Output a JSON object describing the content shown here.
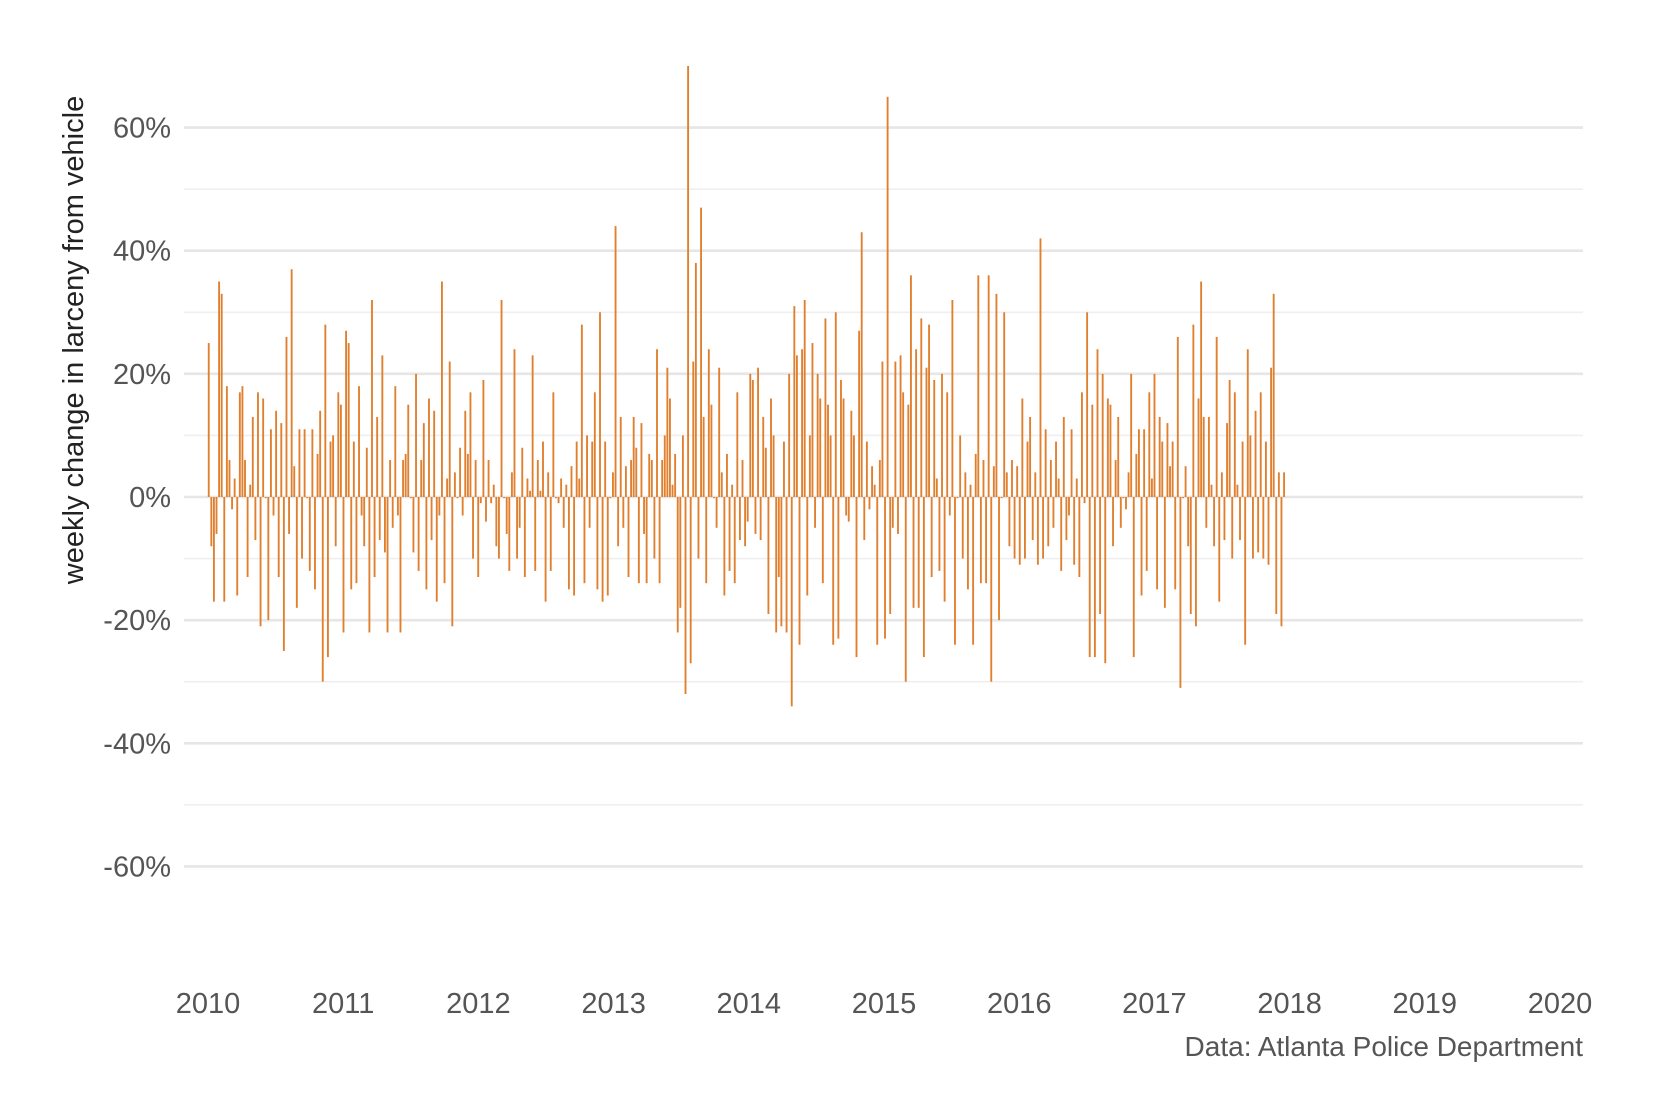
{
  "chart_data": {
    "type": "bar",
    "ylabel": "weekly change in larceny from vehicle",
    "caption": "Data: Atlanta Police Department",
    "ylim": [
      -0.7,
      0.7
    ],
    "xlim": [
      2010,
      2020
    ],
    "y_ticks": [
      -0.6,
      -0.4,
      -0.2,
      0,
      0.2,
      0.4,
      0.6
    ],
    "y_tick_labels": [
      "-60%",
      "-40%",
      "-20%",
      "0%",
      "20%",
      "40%",
      "60%"
    ],
    "x_ticks": [
      2010,
      2011,
      2012,
      2013,
      2014,
      2015,
      2016,
      2017,
      2018,
      2019,
      2020
    ],
    "x_tick_labels": [
      "2010",
      "2011",
      "2012",
      "2013",
      "2014",
      "2015",
      "2016",
      "2017",
      "2018",
      "2019",
      "2020"
    ],
    "grid": true,
    "bar_color": "#e07f2e",
    "x_start": "2010-01-03",
    "x_step_weeks": 1,
    "values": [
      0.25,
      -0.08,
      -0.17,
      -0.06,
      0.35,
      0.33,
      -0.17,
      0.18,
      0.06,
      -0.02,
      0.03,
      -0.16,
      0.17,
      0.18,
      0.06,
      -0.13,
      0.02,
      0.13,
      -0.07,
      0.17,
      -0.21,
      0.16,
      0.0,
      -0.2,
      0.11,
      -0.03,
      0.14,
      -0.13,
      0.12,
      -0.25,
      0.26,
      -0.06,
      0.37,
      0.05,
      -0.18,
      0.11,
      -0.1,
      0.11,
      0.0,
      -0.12,
      0.11,
      -0.15,
      0.07,
      0.14,
      -0.3,
      0.28,
      -0.26,
      0.09,
      0.1,
      -0.08,
      0.17,
      0.15,
      -0.22,
      0.27,
      0.25,
      -0.15,
      0.09,
      -0.14,
      0.18,
      -0.03,
      -0.08,
      0.08,
      -0.22,
      0.32,
      -0.13,
      0.13,
      -0.07,
      0.23,
      -0.09,
      -0.22,
      0.06,
      -0.05,
      0.18,
      -0.03,
      -0.22,
      0.06,
      0.07,
      0.15,
      0.0,
      -0.09,
      0.2,
      -0.12,
      0.06,
      0.12,
      -0.15,
      0.16,
      -0.07,
      0.14,
      -0.17,
      -0.03,
      0.35,
      -0.14,
      0.03,
      0.22,
      -0.21,
      0.04,
      0.0,
      0.08,
      -0.03,
      0.14,
      0.07,
      0.17,
      -0.1,
      0.06,
      -0.13,
      -0.01,
      0.19,
      -0.04,
      0.06,
      -0.01,
      0.02,
      -0.08,
      -0.1,
      0.32,
      0.0,
      -0.06,
      -0.12,
      0.04,
      0.24,
      -0.1,
      -0.05,
      0.08,
      -0.13,
      0.03,
      0.01,
      0.23,
      -0.12,
      0.06,
      0.01,
      0.09,
      -0.17,
      0.04,
      -0.12,
      0.17,
      0.0,
      -0.01,
      0.03,
      -0.05,
      0.02,
      -0.15,
      0.05,
      -0.16,
      0.09,
      0.03,
      0.28,
      -0.14,
      0.1,
      -0.05,
      0.09,
      0.17,
      -0.15,
      0.3,
      -0.17,
      0.09,
      -0.16,
      0.0,
      0.04,
      0.44,
      -0.08,
      0.13,
      -0.05,
      0.05,
      -0.13,
      0.06,
      0.13,
      0.08,
      -0.14,
      0.12,
      -0.06,
      -0.14,
      0.07,
      0.06,
      -0.1,
      0.24,
      -0.14,
      0.06,
      0.1,
      0.21,
      0.16,
      0.02,
      0.07,
      -0.22,
      -0.18,
      0.1,
      -0.32,
      0.7,
      -0.27,
      0.22,
      0.38,
      -0.1,
      0.47,
      0.13,
      -0.14,
      0.24,
      0.15,
      0.0,
      -0.05,
      0.21,
      0.04,
      -0.16,
      0.07,
      -0.12,
      0.02,
      -0.14,
      0.17,
      -0.07,
      0.06,
      -0.08,
      -0.04,
      0.2,
      0.19,
      -0.06,
      0.21,
      -0.07,
      0.13,
      0.08,
      -0.19,
      0.16,
      0.1,
      -0.22,
      -0.13,
      -0.21,
      0.09,
      -0.22,
      0.2,
      -0.34,
      0.31,
      0.23,
      -0.24,
      0.24,
      0.32,
      -0.16,
      0.1,
      0.25,
      -0.05,
      0.2,
      0.16,
      -0.14,
      0.29,
      0.15,
      0.1,
      -0.24,
      0.3,
      -0.23,
      0.19,
      0.16,
      -0.03,
      -0.04,
      0.14,
      0.1,
      -0.26,
      0.27,
      0.43,
      -0.07,
      0.09,
      -0.02,
      0.05,
      0.02,
      -0.24,
      0.06,
      0.22,
      -0.23,
      0.65,
      -0.19,
      -0.05,
      0.22,
      -0.06,
      0.23,
      0.17,
      -0.3,
      0.15,
      0.36,
      -0.18,
      0.24,
      -0.18,
      0.29,
      -0.26,
      0.21,
      0.28,
      -0.13,
      0.19,
      0.03,
      -0.12,
      0.2,
      -0.17,
      0.17,
      -0.03,
      0.32,
      -0.24,
      0.0,
      0.1,
      -0.1,
      0.04,
      -0.15,
      0.02,
      -0.24,
      0.07,
      0.36,
      -0.14,
      0.06,
      -0.14,
      0.36,
      -0.3,
      0.05,
      0.33,
      -0.2,
      0.0,
      0.3,
      0.04,
      -0.08,
      0.06,
      -0.1,
      0.05,
      -0.11,
      0.16,
      -0.1,
      0.09,
      0.13,
      -0.07,
      0.04,
      -0.11,
      0.42,
      -0.1,
      0.11,
      -0.08,
      0.06,
      -0.05,
      0.09,
      0.03,
      -0.12,
      0.13,
      -0.07,
      -0.03,
      0.11,
      -0.11,
      0.03,
      -0.13,
      0.17,
      -0.01,
      0.3,
      -0.26,
      0.15,
      -0.26,
      0.24,
      -0.19,
      0.2,
      -0.27,
      0.16,
      0.15,
      -0.08,
      0.06,
      0.13,
      -0.05,
      0.0,
      -0.02,
      0.04,
      0.2,
      -0.26,
      0.07,
      0.11,
      -0.16,
      0.11,
      -0.12,
      0.17,
      0.03,
      0.2,
      -0.15,
      0.13,
      0.09,
      -0.18,
      0.12,
      0.05,
      0.09,
      -0.15,
      0.26,
      -0.31,
      0.0,
      0.05,
      -0.08,
      -0.19,
      0.28,
      -0.21,
      0.16,
      0.35,
      0.13,
      -0.05,
      0.13,
      0.02,
      -0.08,
      0.26,
      -0.17,
      0.04,
      -0.07,
      0.12,
      0.19,
      -0.1,
      0.17,
      0.02,
      -0.07,
      0.09,
      -0.24,
      0.24,
      0.1,
      -0.1,
      0.14,
      -0.09,
      0.17,
      -0.1,
      0.09,
      -0.11,
      0.21,
      0.33,
      -0.19,
      0.04,
      -0.21,
      0.04
    ]
  }
}
